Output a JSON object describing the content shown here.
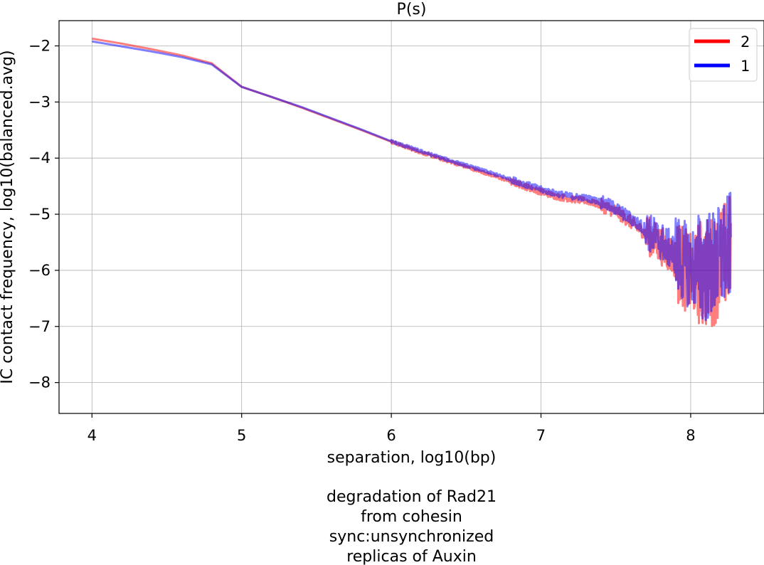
{
  "chart_data": {
    "type": "line",
    "title": "P(s)",
    "xlabel": "separation, log10(bp)",
    "ylabel": "IC contact frequency, log10(balanced.avg)",
    "caption": [
      "degradation of Rad21",
      "from cohesin",
      "sync:unsynchronized",
      "replicas of Auxin"
    ],
    "xlim": [
      3.78,
      8.49
    ],
    "ylim": [
      -8.55,
      -1.55
    ],
    "xticks": [
      4,
      5,
      6,
      7,
      8
    ],
    "yticks": [
      -2,
      -3,
      -4,
      -5,
      -6,
      -7,
      -8
    ],
    "xtick_labels": [
      "4",
      "5",
      "6",
      "7",
      "8"
    ],
    "ytick_labels": [
      "−2",
      "−3",
      "−4",
      "−5",
      "−6",
      "−7",
      "−8"
    ],
    "grid": true,
    "legend": "top-right",
    "series": [
      {
        "name": "2",
        "color": "#ff0000",
        "points": [
          [
            4.0,
            -1.87
          ],
          [
            4.2,
            -1.96
          ],
          [
            4.4,
            -2.06
          ],
          [
            4.6,
            -2.17
          ],
          [
            4.8,
            -2.31
          ],
          [
            5.0,
            -2.73
          ],
          [
            5.2,
            -2.91
          ],
          [
            5.4,
            -3.1
          ],
          [
            5.6,
            -3.3
          ],
          [
            5.8,
            -3.5
          ],
          [
            6.0,
            -3.71
          ],
          [
            6.2,
            -3.9
          ],
          [
            6.4,
            -4.07
          ],
          [
            6.6,
            -4.24
          ],
          [
            6.8,
            -4.42
          ],
          [
            7.0,
            -4.6
          ],
          [
            7.1,
            -4.68
          ],
          [
            7.2,
            -4.73
          ],
          [
            7.3,
            -4.76
          ],
          [
            7.4,
            -4.84
          ],
          [
            7.5,
            -4.95
          ],
          [
            7.6,
            -5.14
          ],
          [
            7.7,
            -5.35
          ],
          [
            7.8,
            -5.55
          ],
          [
            7.9,
            -5.8
          ],
          [
            8.0,
            -6.1
          ],
          [
            8.1,
            -6.05
          ],
          [
            8.15,
            -6.0
          ],
          [
            8.2,
            -5.85
          ],
          [
            8.27,
            -5.6
          ]
        ]
      },
      {
        "name": "1",
        "color": "#0000ff",
        "points": [
          [
            4.0,
            -1.92
          ],
          [
            4.2,
            -2.01
          ],
          [
            4.4,
            -2.1
          ],
          [
            4.6,
            -2.2
          ],
          [
            4.8,
            -2.33
          ],
          [
            5.0,
            -2.73
          ],
          [
            5.2,
            -2.91
          ],
          [
            5.4,
            -3.09
          ],
          [
            5.6,
            -3.29
          ],
          [
            5.8,
            -3.49
          ],
          [
            6.0,
            -3.7
          ],
          [
            6.2,
            -3.88
          ],
          [
            6.4,
            -4.05
          ],
          [
            6.6,
            -4.21
          ],
          [
            6.8,
            -4.38
          ],
          [
            7.0,
            -4.56
          ],
          [
            7.1,
            -4.63
          ],
          [
            7.2,
            -4.68
          ],
          [
            7.3,
            -4.71
          ],
          [
            7.4,
            -4.78
          ],
          [
            7.5,
            -4.9
          ],
          [
            7.6,
            -5.08
          ],
          [
            7.7,
            -5.28
          ],
          [
            7.8,
            -5.48
          ],
          [
            7.9,
            -5.72
          ],
          [
            8.0,
            -5.95
          ],
          [
            8.1,
            -5.95
          ],
          [
            8.15,
            -5.9
          ],
          [
            8.2,
            -5.8
          ],
          [
            8.27,
            -5.55
          ]
        ]
      }
    ]
  }
}
